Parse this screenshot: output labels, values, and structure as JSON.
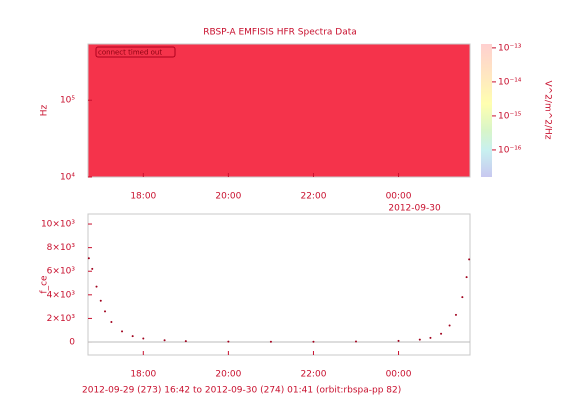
{
  "chart_data": [
    {
      "type": "spectrogram",
      "title": "RBSP-A EMFISIS HFR Spectra Data",
      "ylabel": "Hz",
      "zlabel": "V^2/m^2/Hz",
      "message": "connect timed out",
      "color": "#f5334b",
      "xlim": [
        16.7,
        25.68
      ],
      "xticks": [
        {
          "value": 18,
          "label": "18:00"
        },
        {
          "value": 20,
          "label": "20:00"
        },
        {
          "value": 22,
          "label": "22:00"
        },
        {
          "value": 24,
          "label": "00:00"
        }
      ],
      "date_label": "2012-09-30",
      "log_y": true,
      "ylim": [
        10000,
        540000
      ],
      "yticks": [
        {
          "value": 10000,
          "label": "10⁴"
        },
        {
          "value": 100000,
          "label": "10⁵"
        }
      ],
      "zlim": [
        1.6e-17,
        1.3e-13
      ],
      "zticks": [
        {
          "value": 1e-13,
          "label": "10⁻¹³"
        },
        {
          "value": 1e-14,
          "label": "10⁻¹⁴"
        },
        {
          "value": 1e-15,
          "label": "10⁻¹⁵"
        },
        {
          "value": 1e-16,
          "label": "10⁻¹⁶"
        }
      ]
    },
    {
      "type": "line",
      "ylabel": "f_ce",
      "color": "#a0001c",
      "xlabel": "2012-09-29 (273) 16:42 to 2012-09-30 (274) 01:41 (orbit:rbspa-pp 82)",
      "x": [
        16.72,
        16.8,
        16.9,
        17.0,
        17.1,
        17.25,
        17.5,
        17.75,
        18.0,
        18.5,
        19.0,
        20.0,
        21.0,
        22.0,
        23.0,
        24.0,
        24.5,
        24.75,
        25.0,
        25.2,
        25.35,
        25.5,
        25.6,
        25.66
      ],
      "values": [
        7100,
        6200,
        4700,
        3500,
        2600,
        1700,
        900,
        500,
        300,
        150,
        80,
        30,
        20,
        20,
        40,
        100,
        200,
        350,
        700,
        1400,
        2300,
        3800,
        5500,
        7000
      ],
      "xlim": [
        16.7,
        25.68
      ],
      "xticks": [
        {
          "value": 18,
          "label": "18:00"
        },
        {
          "value": 20,
          "label": "20:00"
        },
        {
          "value": 22,
          "label": "22:00"
        },
        {
          "value": 24,
          "label": "00:00"
        }
      ],
      "ylim": [
        -1100,
        10850
      ],
      "yticks": [
        {
          "value": 10000,
          "label": "10×10³"
        },
        {
          "value": 8000,
          "label": "8×10³"
        },
        {
          "value": 6000,
          "label": "6×10³"
        },
        {
          "value": 4000,
          "label": "4×10³"
        },
        {
          "value": 2000,
          "label": "2×10³"
        },
        0
      ]
    }
  ]
}
